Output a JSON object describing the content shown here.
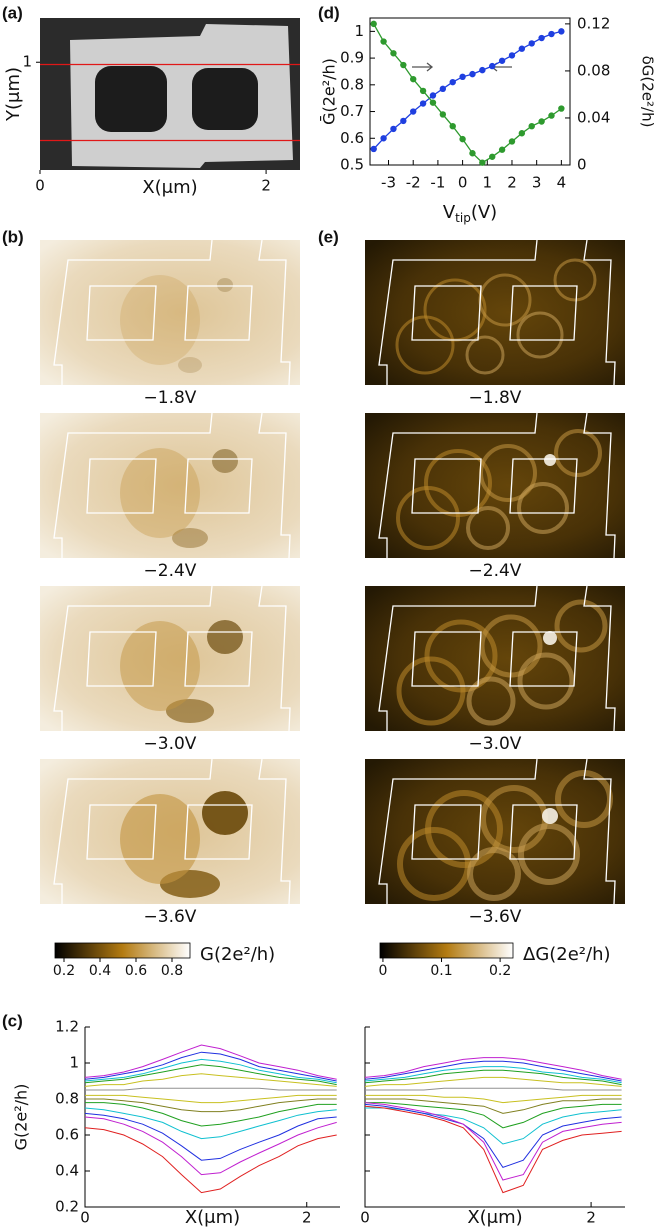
{
  "chart_data": [
    {
      "type": "image",
      "panel": "(a)",
      "xlabel": "X(μm)",
      "ylabel": "Y(μm)",
      "xlim": [
        0,
        2.3
      ],
      "xticks": [
        0,
        2
      ],
      "ylim": [
        0.05,
        1.39
      ],
      "yticks": [
        1
      ],
      "cut_lines": [
        0.98,
        0.31
      ],
      "cut_color": "#e01818"
    },
    {
      "type": "line",
      "panel": "(d)",
      "xlabel": [
        "V",
        "tip",
        "(V)"
      ],
      "ylabel": "Ḡ(2e²/h)",
      "y2label": "δG(2e²/h)",
      "x": [
        -3.6,
        -3.2,
        -2.8,
        -2.4,
        -2.0,
        -1.6,
        -1.2,
        -0.8,
        -0.4,
        0,
        0.4,
        0.8,
        1.2,
        1.6,
        2.0,
        2.4,
        2.8,
        3.2,
        3.6,
        4.0
      ],
      "xlim": [
        -3.75,
        4.35
      ],
      "xticks": [
        -3,
        -2,
        -1,
        0,
        1,
        2,
        3,
        4
      ],
      "ylim": [
        0.5,
        1.05
      ],
      "yticks": [
        0.5,
        0.6,
        0.7,
        0.8,
        0.9,
        1
      ],
      "y2lim": [
        0,
        0.125
      ],
      "y2ticks": [
        0,
        0.04,
        0.08,
        0.12
      ],
      "markers": true,
      "series": [
        {
          "color": "#1f3fe0",
          "values": [
            0.56,
            0.6,
            0.635,
            0.665,
            0.7,
            0.73,
            0.76,
            0.785,
            0.81,
            0.83,
            0.84,
            0.855,
            0.87,
            0.89,
            0.91,
            0.935,
            0.955,
            0.975,
            0.99,
            1.0
          ]
        },
        {
          "color": "#2e9a2e",
          "axis": "y2",
          "values": [
            0.12,
            0.105,
            0.095,
            0.085,
            0.073,
            0.063,
            0.053,
            0.043,
            0.033,
            0.022,
            0.01,
            0.002,
            0.007,
            0.013,
            0.02,
            0.027,
            0.033,
            0.037,
            0.042,
            0.048
          ]
        }
      ]
    },
    {
      "type": "heatmap",
      "panel": "(b)",
      "labels": [
        "−1.8V",
        "−2.4V",
        "−3.0V",
        "−3.6V"
      ],
      "colorbar": {
        "label": "G(2e²/h)",
        "lim": [
          0.15,
          0.9
        ],
        "ticks": [
          0.2,
          0.4,
          0.6,
          0.8
        ],
        "cmap": [
          "#000000",
          "#b37b12",
          "#ffffff"
        ]
      }
    },
    {
      "type": "heatmap",
      "panel": "(e)",
      "labels": [
        "−1.8V",
        "−2.4V",
        "−3.0V",
        "−3.6V"
      ],
      "colorbar": {
        "label": "ΔG(2e²/h)",
        "lim": [
          -0.005,
          0.222
        ],
        "ticks": [
          0,
          0.1,
          0.2
        ],
        "cmap": [
          "#000000",
          "#b37b12",
          "#ffffff"
        ]
      }
    },
    {
      "type": "line",
      "panel": "(c)",
      "xlabel": "X(μm)",
      "ylabel": "G(2e²/h)",
      "x": [
        0,
        0.17,
        0.35,
        0.52,
        0.7,
        0.87,
        1.05,
        1.22,
        1.4,
        1.57,
        1.75,
        1.92,
        2.1,
        2.27
      ],
      "xlim": [
        0,
        2.3
      ],
      "xticks": [
        0,
        2
      ],
      "ylim": [
        0.2,
        1.2
      ],
      "yticks": [
        0.2,
        0.4,
        0.6,
        0.8,
        1,
        1.2
      ],
      "markers": false,
      "series": [
        {
          "color": "#c020d0",
          "values": [
            0.92,
            0.93,
            0.95,
            0.98,
            1.02,
            1.06,
            1.1,
            1.08,
            1.04,
            1.0,
            0.98,
            0.96,
            0.93,
            0.91
          ]
        },
        {
          "color": "#2030e0",
          "values": [
            0.91,
            0.92,
            0.94,
            0.96,
            0.99,
            1.03,
            1.06,
            1.05,
            1.02,
            0.98,
            0.96,
            0.94,
            0.92,
            0.9
          ]
        },
        {
          "color": "#10c0d0",
          "values": [
            0.9,
            0.91,
            0.92,
            0.94,
            0.97,
            1.0,
            1.02,
            1.01,
            0.99,
            0.96,
            0.94,
            0.92,
            0.91,
            0.89
          ]
        },
        {
          "color": "#20a020",
          "values": [
            0.89,
            0.9,
            0.91,
            0.93,
            0.95,
            0.97,
            0.99,
            0.98,
            0.96,
            0.94,
            0.92,
            0.91,
            0.9,
            0.88
          ]
        },
        {
          "color": "#c8c020",
          "values": [
            0.87,
            0.88,
            0.88,
            0.9,
            0.91,
            0.93,
            0.94,
            0.93,
            0.92,
            0.91,
            0.9,
            0.89,
            0.88,
            0.87
          ]
        },
        {
          "color": "#909090",
          "values": [
            0.85,
            0.85,
            0.85,
            0.86,
            0.86,
            0.86,
            0.86,
            0.86,
            0.86,
            0.86,
            0.85,
            0.85,
            0.85,
            0.85
          ]
        },
        {
          "color": "#c8c020",
          "values": [
            0.82,
            0.82,
            0.82,
            0.81,
            0.8,
            0.79,
            0.78,
            0.78,
            0.79,
            0.8,
            0.81,
            0.82,
            0.82,
            0.82
          ]
        },
        {
          "color": "#808020",
          "values": [
            0.8,
            0.8,
            0.79,
            0.78,
            0.76,
            0.74,
            0.73,
            0.73,
            0.74,
            0.76,
            0.78,
            0.79,
            0.8,
            0.8
          ]
        },
        {
          "color": "#20a020",
          "values": [
            0.78,
            0.78,
            0.77,
            0.75,
            0.72,
            0.68,
            0.65,
            0.66,
            0.68,
            0.7,
            0.73,
            0.75,
            0.77,
            0.77
          ]
        },
        {
          "color": "#10c0d0",
          "values": [
            0.75,
            0.74,
            0.72,
            0.7,
            0.67,
            0.62,
            0.58,
            0.59,
            0.62,
            0.65,
            0.68,
            0.71,
            0.73,
            0.74
          ]
        },
        {
          "color": "#2030e0",
          "values": [
            0.72,
            0.71,
            0.69,
            0.66,
            0.61,
            0.54,
            0.46,
            0.47,
            0.52,
            0.56,
            0.6,
            0.65,
            0.69,
            0.7
          ]
        },
        {
          "color": "#c020d0",
          "values": [
            0.7,
            0.69,
            0.66,
            0.62,
            0.56,
            0.48,
            0.38,
            0.39,
            0.45,
            0.5,
            0.55,
            0.6,
            0.64,
            0.67
          ]
        },
        {
          "color": "#e02020",
          "values": [
            0.64,
            0.63,
            0.6,
            0.55,
            0.48,
            0.38,
            0.28,
            0.3,
            0.37,
            0.43,
            0.48,
            0.54,
            0.58,
            0.6
          ]
        }
      ]
    },
    {
      "type": "line",
      "xlabel": "X(μm)",
      "x": [
        0,
        0.17,
        0.35,
        0.52,
        0.7,
        0.87,
        1.05,
        1.22,
        1.4,
        1.57,
        1.75,
        1.92,
        2.1,
        2.27
      ],
      "xlim": [
        0,
        2.3
      ],
      "xticks": [
        0,
        2
      ],
      "ylim": [
        0.2,
        1.2
      ],
      "yticks": [
        0.2,
        0.4,
        0.6,
        0.8,
        1,
        1.2
      ],
      "ytick_labels": false,
      "markers": false,
      "series": [
        {
          "color": "#c020d0",
          "values": [
            0.92,
            0.93,
            0.95,
            0.98,
            1.0,
            1.02,
            1.03,
            1.03,
            1.02,
            1.0,
            0.98,
            0.96,
            0.93,
            0.91
          ]
        },
        {
          "color": "#2030e0",
          "values": [
            0.91,
            0.92,
            0.94,
            0.96,
            0.98,
            1.0,
            1.01,
            1.01,
            1.0,
            0.98,
            0.96,
            0.94,
            0.92,
            0.9
          ]
        },
        {
          "color": "#10c0d0",
          "values": [
            0.9,
            0.91,
            0.92,
            0.94,
            0.96,
            0.97,
            0.98,
            0.98,
            0.97,
            0.95,
            0.94,
            0.92,
            0.91,
            0.89
          ]
        },
        {
          "color": "#20a020",
          "values": [
            0.89,
            0.9,
            0.91,
            0.92,
            0.94,
            0.95,
            0.96,
            0.96,
            0.95,
            0.94,
            0.92,
            0.91,
            0.9,
            0.88
          ]
        },
        {
          "color": "#c8c020",
          "values": [
            0.87,
            0.88,
            0.88,
            0.89,
            0.9,
            0.91,
            0.92,
            0.92,
            0.91,
            0.9,
            0.89,
            0.89,
            0.88,
            0.87
          ]
        },
        {
          "color": "#909090",
          "values": [
            0.85,
            0.85,
            0.85,
            0.85,
            0.86,
            0.86,
            0.86,
            0.86,
            0.86,
            0.86,
            0.85,
            0.85,
            0.85,
            0.85
          ]
        },
        {
          "color": "#c8c020",
          "values": [
            0.82,
            0.82,
            0.82,
            0.82,
            0.81,
            0.81,
            0.8,
            0.78,
            0.79,
            0.8,
            0.81,
            0.82,
            0.82,
            0.82
          ]
        },
        {
          "color": "#808020",
          "values": [
            0.8,
            0.8,
            0.8,
            0.79,
            0.78,
            0.77,
            0.76,
            0.72,
            0.74,
            0.77,
            0.79,
            0.79,
            0.8,
            0.8
          ]
        },
        {
          "color": "#20a020",
          "values": [
            0.78,
            0.78,
            0.77,
            0.76,
            0.75,
            0.74,
            0.71,
            0.64,
            0.67,
            0.72,
            0.75,
            0.76,
            0.77,
            0.77
          ]
        },
        {
          "color": "#10c0d0",
          "values": [
            0.75,
            0.75,
            0.74,
            0.72,
            0.71,
            0.69,
            0.64,
            0.55,
            0.58,
            0.66,
            0.7,
            0.72,
            0.73,
            0.74
          ]
        },
        {
          "color": "#2030e0",
          "values": [
            0.77,
            0.76,
            0.74,
            0.72,
            0.69,
            0.66,
            0.58,
            0.42,
            0.46,
            0.6,
            0.65,
            0.67,
            0.69,
            0.7
          ]
        },
        {
          "color": "#c020d0",
          "values": [
            0.78,
            0.77,
            0.75,
            0.73,
            0.7,
            0.66,
            0.56,
            0.35,
            0.38,
            0.56,
            0.62,
            0.64,
            0.66,
            0.67
          ]
        },
        {
          "color": "#e02020",
          "values": [
            0.76,
            0.75,
            0.73,
            0.71,
            0.68,
            0.64,
            0.52,
            0.28,
            0.32,
            0.52,
            0.57,
            0.6,
            0.61,
            0.62
          ]
        }
      ]
    }
  ]
}
